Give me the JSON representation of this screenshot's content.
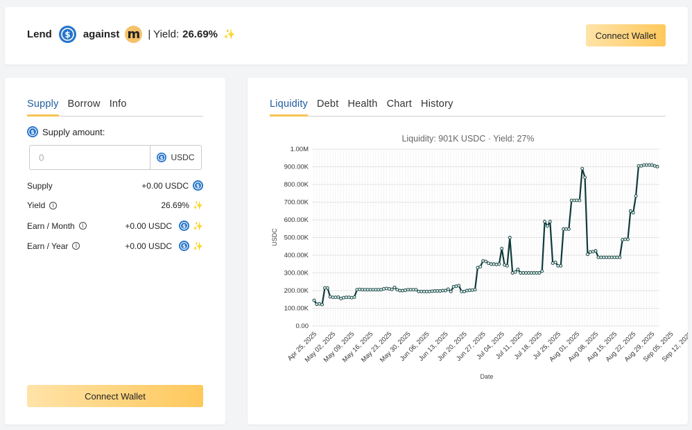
{
  "header": {
    "lend_label": "Lend",
    "against_label": "against",
    "m_token_glyph": "m",
    "yield_prefix": "| Yield:",
    "yield_value": "26.69%",
    "sparkle_icon": "✨",
    "connect_label": "Connect Wallet"
  },
  "left": {
    "tabs": [
      "Supply",
      "Borrow",
      "Info"
    ],
    "active_tab": "Supply",
    "supply_amount_label": "Supply amount:",
    "input_placeholder": "0",
    "input_value": "",
    "unit": "USDC",
    "rows": [
      {
        "label": "Supply",
        "value": "+0.00 USDC"
      },
      {
        "label": "Yield",
        "value": "26.69%"
      },
      {
        "label": "Earn / Month",
        "value": "+0.00 USDC"
      },
      {
        "label": "Earn / Year",
        "value": "+0.00 USDC"
      }
    ],
    "connect_label": "Connect Wallet"
  },
  "right": {
    "tabs": [
      "Liquidity",
      "Debt",
      "Health",
      "Chart",
      "History"
    ],
    "active_tab": "Liquidity"
  },
  "colors": {
    "accent": "#f6c454",
    "active_tab_text": "#1d5c9c",
    "usdc": "#2775ca",
    "line": "#0f3a3a",
    "marker_fill": "#d8ece8"
  },
  "chart_data": {
    "type": "line",
    "title": "Liquidity: 901K USDC · Yield: 27%",
    "xlabel": "Date",
    "ylabel": "USDC",
    "ylim": [
      0,
      1000000
    ],
    "yticks": [
      "0.00",
      "100.00K",
      "200.00K",
      "300.00K",
      "400.00K",
      "500.00K",
      "600.00K",
      "700.00K",
      "800.00K",
      "900.00K",
      "1.00M"
    ],
    "xticks": [
      "Apr 25, 2025",
      "May 02, 2025",
      "May 09, 2025",
      "May 16, 2025",
      "May 23, 2025",
      "May 30, 2025",
      "Jun 06, 2025",
      "Jun 13, 2025",
      "Jun 20, 2025",
      "Jun 27, 2025",
      "Jul 04, 2025",
      "Jul 11, 2025",
      "Jul 18, 2025",
      "Jul 25, 2025",
      "Aug 01, 2025",
      "Aug 08, 2025",
      "Aug 15, 2025",
      "Aug 22, 2025",
      "Aug 29, 2025",
      "Sep 05, 2025",
      "Sep 12, 2025"
    ],
    "grid": true,
    "series": [
      {
        "values": [
          145000,
          123000,
          125000,
          121000,
          215000,
          215000,
          165000,
          162000,
          162000,
          163000,
          155000,
          160000,
          162000,
          162000,
          160000,
          163000,
          205000,
          207000,
          205000,
          205000,
          205000,
          205000,
          205000,
          205000,
          205000,
          205000,
          210000,
          212000,
          210000,
          207000,
          218000,
          205000,
          200000,
          200000,
          202000,
          205000,
          205000,
          205000,
          205000,
          195000,
          195000,
          195000,
          195000,
          195000,
          197000,
          198000,
          198000,
          198000,
          200000,
          200000,
          208000,
          195000,
          222000,
          225000,
          228000,
          195000,
          195000,
          200000,
          202000,
          203000,
          205000,
          330000,
          335000,
          368000,
          365000,
          355000,
          350000,
          350000,
          348000,
          350000,
          438000,
          345000,
          340000,
          500000,
          300000,
          305000,
          320000,
          300000,
          300000,
          300000,
          300000,
          300000,
          300000,
          300000,
          300000,
          310000,
          590000,
          565000,
          590000,
          355000,
          360000,
          340000,
          340000,
          548000,
          548000,
          548000,
          710000,
          710000,
          710000,
          710000,
          890000,
          840000,
          405000,
          418000,
          420000,
          425000,
          388000,
          388000,
          388000,
          388000,
          388000,
          388000,
          388000,
          388000,
          388000,
          488000,
          490000,
          490000,
          650000,
          640000,
          735000,
          905000,
          905000,
          910000,
          910000,
          910000,
          910000,
          905000,
          901000
        ]
      }
    ]
  }
}
